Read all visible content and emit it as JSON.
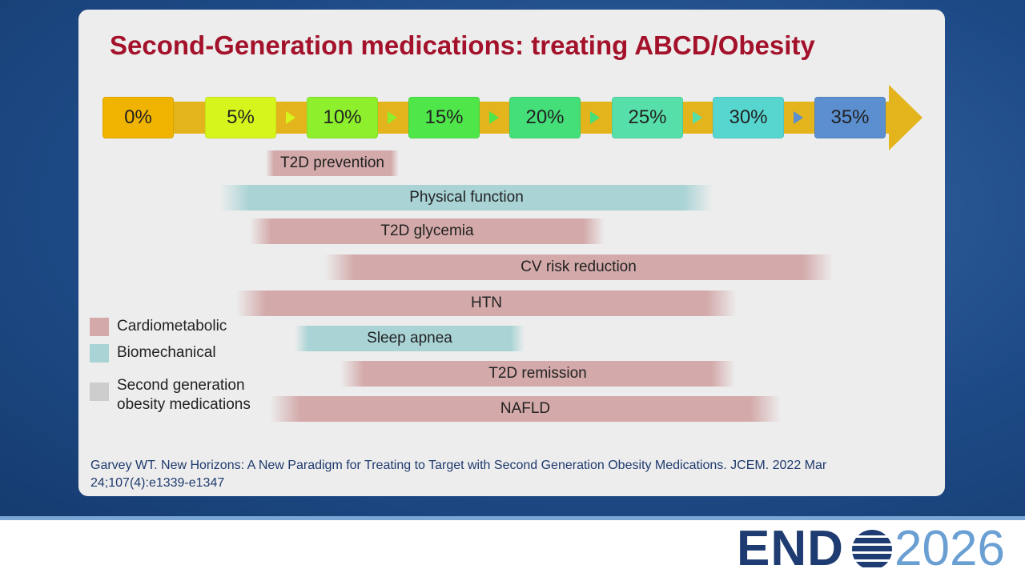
{
  "title": "Second-Generation medications: treating ABCD/Obesity",
  "scale": [
    "0%",
    "5%",
    "10%",
    "15%",
    "20%",
    "25%",
    "30%",
    "35%"
  ],
  "bars": [
    "T2D prevention",
    "Physical function",
    "T2D glycemia",
    "CV risk reduction",
    "HTN",
    "Sleep apnea",
    "T2D remission",
    "NAFLD"
  ],
  "legend": [
    "Cardiometabolic",
    "Biomechanical",
    "Second generation obesity medications"
  ],
  "citation": [
    "Garvey WT.  New Horizons: A New Paradigm for Treating to Target with Second Generation Obesity Medications.  JCEM. 2022 Mar",
    "24;107(4):e1339-e1347"
  ],
  "logo": {
    "brand": "END",
    "year": "2026"
  }
}
